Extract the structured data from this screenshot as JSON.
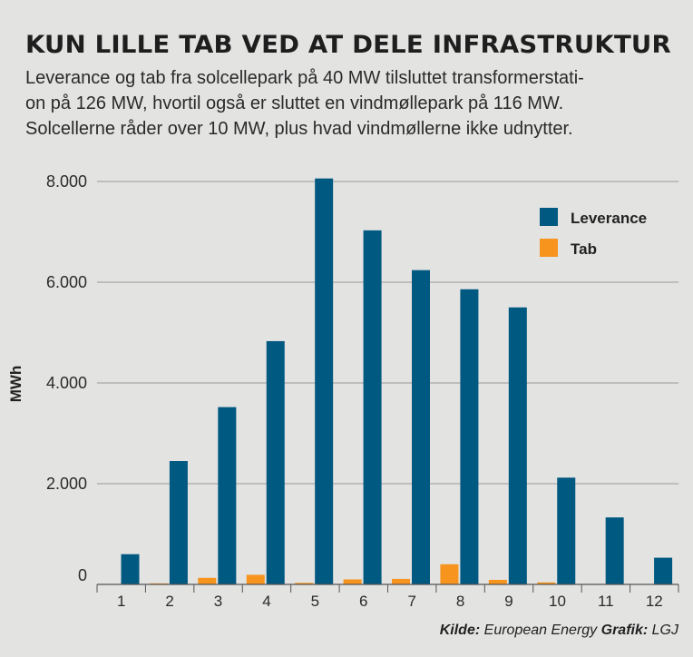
{
  "title": "KUN LILLE TAB VED AT DELE INFRASTRUKTUR",
  "subtitle": "Leverance og tab fra solcellepark på 40 MW tilsluttet transformerstati-on på 126 MW, hvortil også er sluttet en vindmøllepark på 116 MW. Solcellerne råder over 10 MW, plus hvad vindmøllerne ikke udnytter.",
  "subtitle_lines": [
    "Leverance og tab fra solcellepark på 40 MW tilsluttet transformerstati-",
    "on på 126 MW, hvortil også er sluttet en vindmøllepark på 116 MW.",
    "Solcellerne råder over 10 MW, plus hvad vindmøllerne ikke udnytter."
  ],
  "footer": {
    "source_label": "Kilde:",
    "source_value": "European Energy",
    "graphic_label": "Grafik:",
    "graphic_value": "LGJ"
  },
  "chart_data": {
    "type": "bar",
    "categories": [
      "1",
      "2",
      "3",
      "4",
      "5",
      "6",
      "7",
      "8",
      "9",
      "10",
      "11",
      "12"
    ],
    "series": [
      {
        "name": "Leverance",
        "color": "#005980",
        "values": [
          600,
          2450,
          3520,
          4830,
          8060,
          7030,
          6240,
          5860,
          5500,
          2120,
          1330,
          530
        ]
      },
      {
        "name": "Tab",
        "color": "#f7941d",
        "values": [
          5,
          20,
          130,
          190,
          30,
          100,
          110,
          400,
          90,
          40,
          10,
          5
        ]
      }
    ],
    "ylabel": "MWh",
    "xlabel": "",
    "ylim": [
      0,
      8000
    ],
    "yticks": [
      0,
      2000,
      4000,
      6000,
      8000
    ],
    "ytick_labels": [
      "0",
      "2.000",
      "4.000",
      "6.000",
      "8.000"
    ],
    "grid": true,
    "legend_position": "top-right"
  }
}
